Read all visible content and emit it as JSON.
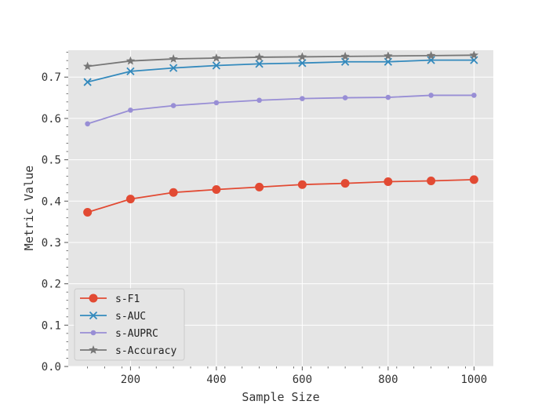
{
  "chart_data": {
    "type": "line",
    "title": "",
    "xlabel": "Sample Size",
    "ylabel": "Metric Value",
    "x": [
      100,
      200,
      300,
      400,
      500,
      600,
      700,
      800,
      900,
      1000
    ],
    "xlim": [
      55,
      1045
    ],
    "ylim": [
      0.0,
      0.765
    ],
    "xticks": [
      200,
      400,
      600,
      800,
      1000
    ],
    "yticks": [
      0.0,
      0.1,
      0.2,
      0.3,
      0.4,
      0.5,
      0.6,
      0.7
    ],
    "xtick_labels": [
      "200",
      "400",
      "600",
      "800",
      "1000"
    ],
    "ytick_labels": [
      "0.0",
      "0.1",
      "0.2",
      "0.3",
      "0.4",
      "0.5",
      "0.6",
      "0.7"
    ],
    "grid": true,
    "legend_position": "lower-left",
    "series": [
      {
        "name": "s-F1",
        "color": "#E24A33",
        "marker": "circle",
        "values": [
          0.373,
          0.405,
          0.421,
          0.428,
          0.434,
          0.44,
          0.443,
          0.447,
          0.449,
          0.452
        ]
      },
      {
        "name": "s-AUC",
        "color": "#348ABD",
        "marker": "x",
        "values": [
          0.688,
          0.714,
          0.722,
          0.728,
          0.732,
          0.734,
          0.737,
          0.737,
          0.741,
          0.741
        ]
      },
      {
        "name": "s-AUPRC",
        "color": "#988ED5",
        "marker": "dot",
        "values": [
          0.587,
          0.62,
          0.631,
          0.638,
          0.644,
          0.648,
          0.65,
          0.651,
          0.656,
          0.656
        ]
      },
      {
        "name": "s-Accuracy",
        "color": "#777777",
        "marker": "star",
        "values": [
          0.726,
          0.739,
          0.744,
          0.746,
          0.748,
          0.749,
          0.75,
          0.751,
          0.752,
          0.753
        ]
      }
    ]
  }
}
